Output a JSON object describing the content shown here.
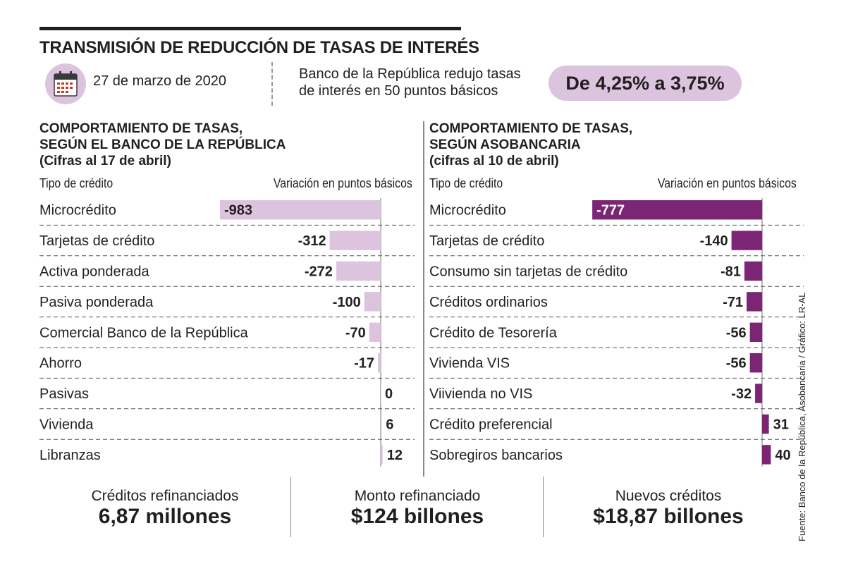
{
  "header": {
    "title": "TRANSMISIÓN DE REDUCCIÓN DE TASAS DE INTERÉS",
    "date": "27 de marzo de 2020",
    "note_line1": "Banco de la República redujo tasas",
    "note_line2": "de interés en 50 puntos básicos",
    "highlight": "De 4,25% a 3,75%"
  },
  "colors": {
    "light_purple": "#dcc4df",
    "dark_purple": "#7b2574",
    "text": "#231f20"
  },
  "icons": {
    "calendar": "calendar-icon"
  },
  "chart_data": [
    {
      "type": "bar",
      "title_line1": "COMPORTAMIENTO DE TASAS,",
      "title_line2": "SEGÚN EL BANCO DE LA REPÚBLICA",
      "title_line3": "(Cifras al 17 de abril)",
      "xlabel": "Tipo de crédito",
      "ylabel": "Variación en puntos básicos",
      "color": "#dcc4df",
      "categories": [
        "Microcrédito",
        "Tarjetas de crédito",
        "Activa ponderada",
        "Pasiva ponderada",
        "Comercial Banco de la República",
        "Ahorro",
        "Pasivas",
        "Vivienda",
        "Libranzas"
      ],
      "values": [
        -983,
        -312,
        -272,
        -100,
        -70,
        -17,
        0,
        6,
        12
      ],
      "labels": [
        "-983",
        "-312",
        "-272",
        "-100",
        "-70",
        "-17",
        "0",
        "6",
        "12"
      ]
    },
    {
      "type": "bar",
      "title_line1": "COMPORTAMIENTO DE TASAS,",
      "title_line2": "SEGÚN ASOBANCARIA",
      "title_line3": "(cifras al 10 de abril)",
      "xlabel": "Tipo de crédito",
      "ylabel": "Variación en puntos básicos",
      "color": "#7b2574",
      "categories": [
        "Microcrédito",
        "Tarjetas de crédito",
        "Consumo sin tarjetas de crédito",
        "Créditos ordinarios",
        "Crédito de Tesorería",
        "Vivienda VIS",
        "Viivienda no VIS",
        "Crédito preferencial",
        "Sobregiros bancarios"
      ],
      "values": [
        -777,
        -140,
        -81,
        -71,
        -56,
        -56,
        -32,
        31,
        40
      ],
      "labels": [
        "-777",
        "-140",
        "-81",
        "-71",
        "-56",
        "-56",
        "-32",
        "31",
        "40"
      ]
    }
  ],
  "stats": [
    {
      "label": "Créditos refinanciados",
      "value": "6,87 millones"
    },
    {
      "label": "Monto refinanciado",
      "value": "$124 billones"
    },
    {
      "label": "Nuevos créditos",
      "value": "$18,87 billones"
    }
  ],
  "footer": {
    "source": "Fuente: Banco de la República, Asobancaria / Gráfico: LR-AL"
  }
}
